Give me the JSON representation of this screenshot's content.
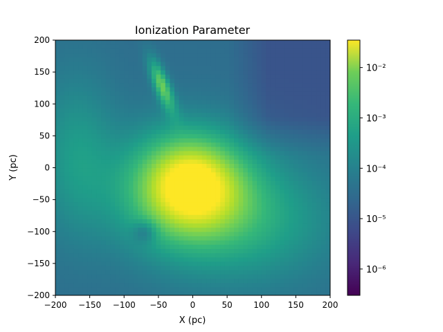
{
  "chart_data": {
    "type": "heatmap",
    "title": "Ionization Parameter",
    "xlabel": "X (pc)",
    "ylabel": "Y (pc)",
    "xlim": [
      -200,
      200
    ],
    "ylim": [
      -200,
      200
    ],
    "x_ticks": [
      -200,
      -150,
      -100,
      -50,
      0,
      50,
      100,
      150,
      200
    ],
    "y_ticks": [
      -200,
      -150,
      -100,
      -50,
      0,
      50,
      100,
      150,
      200
    ],
    "x_tick_labels": [
      "−200",
      "−150",
      "−100",
      "−50",
      "0",
      "50",
      "100",
      "150",
      "200"
    ],
    "y_tick_labels": [
      "−200",
      "−150",
      "−100",
      "−50",
      "0",
      "50",
      "100",
      "150",
      "200"
    ],
    "colormap": "viridis",
    "colorbar": {
      "scale": "log",
      "range": [
        3e-07,
        0.035
      ],
      "ticks": [
        1e-06,
        1e-05,
        0.0001,
        0.001,
        0.01
      ],
      "tick_labels": [
        "10⁻⁶",
        "10⁻⁵",
        "10⁻⁴",
        "10⁻³",
        "10⁻²"
      ]
    },
    "features": [
      {
        "kind": "background",
        "value": 2e-05
      },
      {
        "kind": "peak",
        "x": -2,
        "y": -22,
        "value": 0.03
      },
      {
        "kind": "bright_blob",
        "x": -30,
        "y": -40,
        "value": 0.002
      },
      {
        "kind": "filament",
        "x": -45,
        "y": 130,
        "value": 0.002
      },
      {
        "kind": "dark_spot",
        "x": -70,
        "y": -100,
        "value": 5e-06
      }
    ]
  }
}
